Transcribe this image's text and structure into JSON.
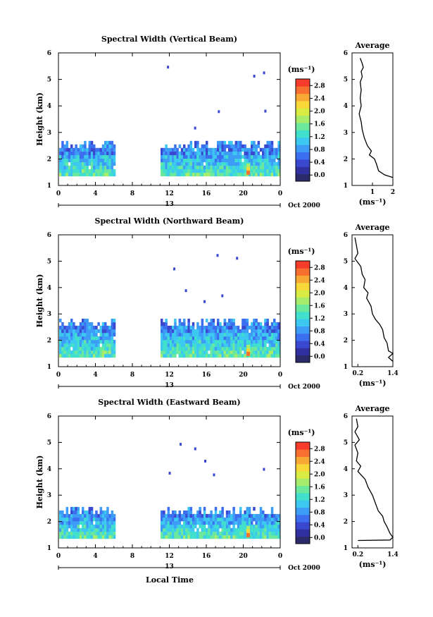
{
  "x_axis_label": "Local Time",
  "date_label": "Oct 2000",
  "day_label": "13",
  "colorbar_unit": "(ms⁻¹)",
  "avg_title": "Average",
  "avg_xlabel": "(ms⁻¹)",
  "ylabel": "Height (km)",
  "colorbar_ticks": [
    "0.0",
    "0.4",
    "0.8",
    "1.2",
    "1.6",
    "2.0",
    "2.4",
    "2.8"
  ],
  "colorbar_colors": [
    "#2b2b6b",
    "#3030a0",
    "#3a48d0",
    "#3c6ef0",
    "#3c9cf6",
    "#3cc8f0",
    "#40e0cc",
    "#6ce89c",
    "#a8ec6c",
    "#d8ec44",
    "#f8d838",
    "#f8a834",
    "#f87030",
    "#f83c2c"
  ],
  "chart_data": [
    {
      "type": "heatmap",
      "title": "Spectral Width (Vertical Beam)",
      "x_ticks": [
        "0",
        "4",
        "8",
        "12",
        "16",
        "20",
        "0"
      ],
      "y_ticks": [
        "1",
        "2",
        "3",
        "4",
        "5",
        "6"
      ],
      "xlim": [
        0,
        24
      ],
      "ylim": [
        1,
        6
      ],
      "data_gap_hours": [
        6,
        11
      ],
      "echo_layer_top_km": 2.55,
      "echo_layer_bottom_km": 1.35,
      "average_profile": {
        "xlim": [
          0,
          2
        ],
        "x_ticks": [
          "1",
          "2"
        ],
        "points": [
          [
            0.4,
            5.8
          ],
          [
            0.5,
            5.6
          ],
          [
            0.55,
            5.45
          ],
          [
            0.45,
            5.3
          ],
          [
            0.5,
            5.1
          ],
          [
            0.4,
            4.9
          ],
          [
            0.45,
            4.6
          ],
          [
            0.4,
            4.3
          ],
          [
            0.45,
            4.0
          ],
          [
            0.35,
            3.7
          ],
          [
            0.45,
            3.4
          ],
          [
            0.5,
            3.1
          ],
          [
            0.6,
            2.8
          ],
          [
            0.75,
            2.5
          ],
          [
            0.95,
            2.3
          ],
          [
            0.85,
            2.15
          ],
          [
            1.1,
            2.0
          ],
          [
            1.2,
            1.8
          ],
          [
            1.3,
            1.55
          ],
          [
            1.6,
            1.4
          ],
          [
            2.0,
            1.3
          ]
        ]
      }
    },
    {
      "type": "heatmap",
      "title": "Spectral Width (Northward Beam)",
      "x_ticks": [
        "0",
        "4",
        "8",
        "12",
        "16",
        "20",
        "0"
      ],
      "y_ticks": [
        "1",
        "2",
        "3",
        "4",
        "5",
        "6"
      ],
      "xlim": [
        0,
        24
      ],
      "ylim": [
        1,
        6
      ],
      "data_gap_hours": [
        6,
        11
      ],
      "echo_layer_top_km": 2.75,
      "echo_layer_bottom_km": 1.35,
      "average_profile": {
        "xlim": [
          0,
          1.4
        ],
        "x_ticks": [
          "0.2",
          "1.4"
        ],
        "points": [
          [
            0.1,
            5.9
          ],
          [
            0.15,
            5.6
          ],
          [
            0.2,
            5.3
          ],
          [
            0.1,
            5.1
          ],
          [
            0.3,
            4.8
          ],
          [
            0.35,
            4.5
          ],
          [
            0.45,
            4.3
          ],
          [
            0.4,
            4.0
          ],
          [
            0.55,
            3.8
          ],
          [
            0.5,
            3.6
          ],
          [
            0.65,
            3.3
          ],
          [
            0.7,
            3.0
          ],
          [
            0.8,
            2.8
          ],
          [
            0.95,
            2.6
          ],
          [
            1.05,
            2.4
          ],
          [
            1.1,
            2.1
          ],
          [
            1.2,
            1.9
          ],
          [
            1.25,
            1.6
          ],
          [
            1.4,
            1.5
          ],
          [
            1.25,
            1.35
          ],
          [
            1.4,
            1.2
          ]
        ]
      }
    },
    {
      "type": "heatmap",
      "title": "Spectral Width (Eastward Beam)",
      "x_ticks": [
        "0",
        "4",
        "8",
        "12",
        "16",
        "20",
        "0"
      ],
      "y_ticks": [
        "1",
        "2",
        "3",
        "4",
        "5",
        "6"
      ],
      "xlim": [
        0,
        24
      ],
      "ylim": [
        1,
        6
      ],
      "data_gap_hours": [
        6,
        11
      ],
      "echo_layer_top_km": 2.5,
      "echo_layer_bottom_km": 1.35,
      "average_profile": {
        "xlim": [
          0,
          1.4
        ],
        "x_ticks": [
          "0.2",
          "1.4"
        ],
        "points": [
          [
            0.15,
            5.9
          ],
          [
            0.2,
            5.6
          ],
          [
            0.1,
            5.4
          ],
          [
            0.25,
            5.1
          ],
          [
            0.1,
            4.9
          ],
          [
            0.2,
            4.6
          ],
          [
            0.15,
            4.3
          ],
          [
            0.3,
            4.1
          ],
          [
            0.2,
            3.9
          ],
          [
            0.45,
            3.6
          ],
          [
            0.55,
            3.3
          ],
          [
            0.7,
            3.0
          ],
          [
            0.8,
            2.7
          ],
          [
            0.9,
            2.4
          ],
          [
            1.05,
            2.2
          ],
          [
            1.1,
            2.0
          ],
          [
            1.2,
            1.8
          ],
          [
            1.3,
            1.55
          ],
          [
            1.4,
            1.4
          ],
          [
            1.3,
            1.3
          ],
          [
            0.2,
            1.28
          ]
        ]
      }
    }
  ]
}
